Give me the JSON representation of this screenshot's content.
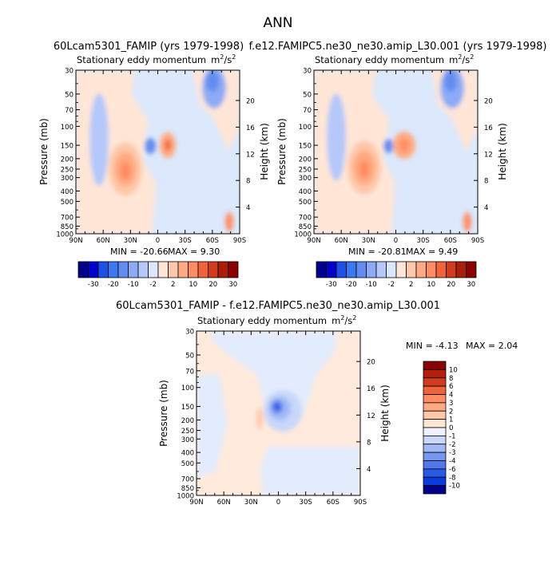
{
  "figure": {
    "title": "ANN"
  },
  "chart_data": [
    {
      "type": "contour",
      "title": "60Lcam5301_FAMIP (yrs 1979-1998)",
      "subtitle": "Stationary eddy momentum",
      "units_main": "m",
      "units_sup1": "2",
      "units_mid": "/s",
      "units_sup2": "2",
      "xlabel": "",
      "ylabel": "Pressure (mb)",
      "y2label": "Height (km)",
      "x_ticks": [
        "90N",
        "60N",
        "30N",
        "0",
        "30S",
        "60S",
        "90S"
      ],
      "x_values": [
        90,
        60,
        30,
        0,
        -30,
        -60,
        -90
      ],
      "y_ticks": [
        "30",
        "50",
        "70",
        "100",
        "150",
        "200",
        "250",
        "300",
        "400",
        "500",
        "700",
        "850",
        "1000"
      ],
      "y_values": [
        30,
        50,
        70,
        100,
        150,
        200,
        250,
        300,
        400,
        500,
        700,
        850,
        1000
      ],
      "y_scale": "log",
      "height_ticks": [
        "4",
        "8",
        "12",
        "16",
        "20"
      ],
      "height_values": [
        4,
        8,
        12,
        16,
        20
      ],
      "min_label": "MIN = -20.66",
      "max_label": "MAX =  9.30",
      "colorbar_labels": [
        "-30",
        "-20",
        "-10",
        "-2",
        "2",
        "10",
        "20",
        "30"
      ],
      "colorbar_orientation": "horizontal",
      "features": [
        {
          "lat": 36,
          "p": 270,
          "value": 9.3
        },
        {
          "lat": 2,
          "p": 150,
          "value": 8.0
        },
        {
          "lat": 12,
          "p": 150,
          "value": -12.0
        },
        {
          "lat": 58,
          "p": 120,
          "value": -5.0
        },
        {
          "lat": -60,
          "p": 50,
          "value": -6.0
        },
        {
          "lat": -82,
          "p": 820,
          "value": 4.0
        }
      ]
    },
    {
      "type": "contour",
      "title": "f.e12.FAMIPC5.ne30_ne30.amip_L30.001 (yrs 1979-1998)",
      "subtitle": "Stationary eddy momentum",
      "units_main": "m",
      "units_sup1": "2",
      "units_mid": "/s",
      "units_sup2": "2",
      "xlabel": "",
      "ylabel": "Pressure (mb)",
      "y2label": "Height (km)",
      "x_ticks": [
        "90N",
        "60N",
        "30N",
        "0",
        "30S",
        "60S",
        "90S"
      ],
      "x_values": [
        90,
        60,
        30,
        0,
        -30,
        -60,
        -90
      ],
      "y_ticks": [
        "30",
        "50",
        "70",
        "100",
        "150",
        "200",
        "250",
        "300",
        "400",
        "500",
        "700",
        "850",
        "1000"
      ],
      "y_values": [
        30,
        50,
        70,
        100,
        150,
        200,
        250,
        300,
        400,
        500,
        700,
        850,
        1000
      ],
      "y_scale": "log",
      "height_ticks": [
        "4",
        "8",
        "12",
        "16",
        "20"
      ],
      "height_values": [
        4,
        8,
        12,
        16,
        20
      ],
      "min_label": "MIN = -20.81",
      "max_label": "MAX =  9.49",
      "colorbar_labels": [
        "-30",
        "-20",
        "-10",
        "-2",
        "2",
        "10",
        "20",
        "30"
      ],
      "colorbar_orientation": "horizontal",
      "features": [
        {
          "lat": 36,
          "p": 270,
          "value": 9.49
        },
        {
          "lat": -2,
          "p": 150,
          "value": 8.0
        },
        {
          "lat": 12,
          "p": 150,
          "value": -10.0
        },
        {
          "lat": 58,
          "p": 120,
          "value": -5.0
        },
        {
          "lat": -60,
          "p": 50,
          "value": -6.0
        },
        {
          "lat": -82,
          "p": 820,
          "value": 4.0
        }
      ]
    },
    {
      "type": "contour",
      "title": "60Lcam5301_FAMIP - f.e12.FAMIPC5.ne30_ne30.amip_L30.001",
      "subtitle": "Stationary eddy momentum",
      "units_main": "m",
      "units_sup1": "2",
      "units_mid": "/s",
      "units_sup2": "2",
      "xlabel": "",
      "ylabel": "Pressure (mb)",
      "y2label": "Height (km)",
      "x_ticks": [
        "90N",
        "60N",
        "30N",
        "0",
        "30S",
        "60S",
        "90S"
      ],
      "x_values": [
        90,
        60,
        30,
        0,
        -30,
        -60,
        -90
      ],
      "y_ticks": [
        "30",
        "50",
        "70",
        "100",
        "150",
        "200",
        "250",
        "300",
        "400",
        "500",
        "700",
        "850",
        "1000"
      ],
      "y_values": [
        30,
        50,
        70,
        100,
        150,
        200,
        250,
        300,
        400,
        500,
        700,
        850,
        1000
      ],
      "y_scale": "log",
      "height_ticks": [
        "4",
        "8",
        "12",
        "16",
        "20"
      ],
      "height_values": [
        4,
        8,
        12,
        16,
        20
      ],
      "min_label": "MIN =   -4.13",
      "max_label": "MAX =    2.04",
      "colorbar_labels": [
        "10",
        "8",
        "6",
        "4",
        "3",
        "2",
        "1",
        "0",
        "-1",
        "-2",
        "-3",
        "-4",
        "-6",
        "-8",
        "-10"
      ],
      "colorbar_orientation": "vertical",
      "features": [
        {
          "lat": 0,
          "p": 150,
          "value": -4.13
        },
        {
          "lat": 22,
          "p": 180,
          "value": 2.04
        },
        {
          "lat": -10,
          "p": 100,
          "value": -1.0
        },
        {
          "lat": 50,
          "p": 500,
          "value": 0.5
        }
      ]
    }
  ],
  "colors": {
    "horizontal_colorbar": [
      "#00008b",
      "#0000cd",
      "#1e50e6",
      "#3c78f0",
      "#648cf0",
      "#8caaf5",
      "#b4c8fa",
      "#dce6ff",
      "#ffe6d7",
      "#ffc8aa",
      "#ffaa82",
      "#ff8c64",
      "#f0643c",
      "#d23c1e",
      "#aa1e0a",
      "#8b0000"
    ],
    "vertical_colorbar": [
      "#8b0000",
      "#b41e0a",
      "#d23c1e",
      "#f0643c",
      "#ff8c64",
      "#ffaa82",
      "#ffc8aa",
      "#ffe6d7",
      "#eff5ff",
      "#c8d7fa",
      "#a0b9f5",
      "#7896f0",
      "#5078eb",
      "#285ae6",
      "#0a3cdc",
      "#00008b"
    ]
  }
}
